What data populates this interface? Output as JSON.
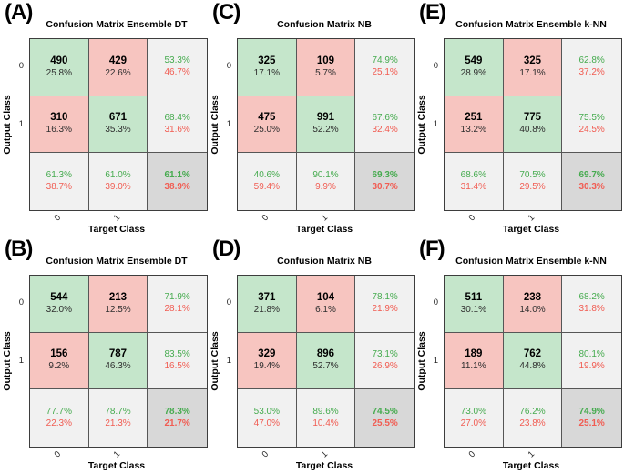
{
  "colors": {
    "correct_cell_bg": "#c5e6cb",
    "incorrect_cell_bg": "#f7c5c0",
    "summary_cell_bg": "#f1f1f1",
    "overall_cell_bg": "#d8d8d8",
    "positive_text": "#46ab4f",
    "negative_text": "#f15c52"
  },
  "chart_data": [
    {
      "type": "heatmap",
      "panel_label": "(A)",
      "title": "Confusion Matrix Ensemble DT",
      "xlabel": "Target Class",
      "ylabel": "Output Class",
      "classes": [
        "0",
        "1"
      ],
      "matrix": [
        [
          490,
          429
        ],
        [
          310,
          671
        ]
      ],
      "matrix_pct": [
        [
          "25.8%",
          "22.6%"
        ],
        [
          "16.3%",
          "35.3%"
        ]
      ],
      "row_summary": [
        {
          "green": "53.3%",
          "red": "46.7%"
        },
        {
          "green": "68.4%",
          "red": "31.6%"
        }
      ],
      "col_summary": [
        {
          "green": "61.3%",
          "red": "38.7%"
        },
        {
          "green": "61.0%",
          "red": "39.0%"
        }
      ],
      "overall": {
        "green": "61.1%",
        "red": "38.9%"
      }
    },
    {
      "type": "heatmap",
      "panel_label": "(C)",
      "title": "Confusion Matrix NB",
      "xlabel": "Target Class",
      "ylabel": "Output Class",
      "classes": [
        "0",
        "1"
      ],
      "matrix": [
        [
          325,
          109
        ],
        [
          475,
          991
        ]
      ],
      "matrix_pct": [
        [
          "17.1%",
          "5.7%"
        ],
        [
          "25.0%",
          "52.2%"
        ]
      ],
      "row_summary": [
        {
          "green": "74.9%",
          "red": "25.1%"
        },
        {
          "green": "67.6%",
          "red": "32.4%"
        }
      ],
      "col_summary": [
        {
          "green": "40.6%",
          "red": "59.4%"
        },
        {
          "green": "90.1%",
          "red": "9.9%"
        }
      ],
      "overall": {
        "green": "69.3%",
        "red": "30.7%"
      }
    },
    {
      "type": "heatmap",
      "panel_label": "(E)",
      "title": "Confusion Matrix Ensemble k-NN",
      "xlabel": "Target Class",
      "ylabel": "Output Class",
      "classes": [
        "0",
        "1"
      ],
      "matrix": [
        [
          549,
          325
        ],
        [
          251,
          775
        ]
      ],
      "matrix_pct": [
        [
          "28.9%",
          "17.1%"
        ],
        [
          "13.2%",
          "40.8%"
        ]
      ],
      "row_summary": [
        {
          "green": "62.8%",
          "red": "37.2%"
        },
        {
          "green": "75.5%",
          "red": "24.5%"
        }
      ],
      "col_summary": [
        {
          "green": "68.6%",
          "red": "31.4%"
        },
        {
          "green": "70.5%",
          "red": "29.5%"
        }
      ],
      "overall": {
        "green": "69.7%",
        "red": "30.3%"
      }
    },
    {
      "type": "heatmap",
      "panel_label": "(B)",
      "title": "Confusion Matrix Ensemble DT",
      "xlabel": "Target Class",
      "ylabel": "Output Class",
      "classes": [
        "0",
        "1"
      ],
      "matrix": [
        [
          544,
          213
        ],
        [
          156,
          787
        ]
      ],
      "matrix_pct": [
        [
          "32.0%",
          "12.5%"
        ],
        [
          "9.2%",
          "46.3%"
        ]
      ],
      "row_summary": [
        {
          "green": "71.9%",
          "red": "28.1%"
        },
        {
          "green": "83.5%",
          "red": "16.5%"
        }
      ],
      "col_summary": [
        {
          "green": "77.7%",
          "red": "22.3%"
        },
        {
          "green": "78.7%",
          "red": "21.3%"
        }
      ],
      "overall": {
        "green": "78.3%",
        "red": "21.7%"
      }
    },
    {
      "type": "heatmap",
      "panel_label": "(D)",
      "title": "Confusion Matrix NB",
      "xlabel": "Target Class",
      "ylabel": "Output Class",
      "classes": [
        "0",
        "1"
      ],
      "matrix": [
        [
          371,
          104
        ],
        [
          329,
          896
        ]
      ],
      "matrix_pct": [
        [
          "21.8%",
          "6.1%"
        ],
        [
          "19.4%",
          "52.7%"
        ]
      ],
      "row_summary": [
        {
          "green": "78.1%",
          "red": "21.9%"
        },
        {
          "green": "73.1%",
          "red": "26.9%"
        }
      ],
      "col_summary": [
        {
          "green": "53.0%",
          "red": "47.0%"
        },
        {
          "green": "89.6%",
          "red": "10.4%"
        }
      ],
      "overall": {
        "green": "74.5%",
        "red": "25.5%"
      }
    },
    {
      "type": "heatmap",
      "panel_label": "(F)",
      "title": "Confusion Matrix Ensemble k-NN",
      "xlabel": "Target Class",
      "ylabel": "Output Class",
      "classes": [
        "0",
        "1"
      ],
      "matrix": [
        [
          511,
          238
        ],
        [
          189,
          762
        ]
      ],
      "matrix_pct": [
        [
          "30.1%",
          "14.0%"
        ],
        [
          "11.1%",
          "44.8%"
        ]
      ],
      "row_summary": [
        {
          "green": "68.2%",
          "red": "31.8%"
        },
        {
          "green": "80.1%",
          "red": "19.9%"
        }
      ],
      "col_summary": [
        {
          "green": "73.0%",
          "red": "27.0%"
        },
        {
          "green": "76.2%",
          "red": "23.8%"
        }
      ],
      "overall": {
        "green": "74.9%",
        "red": "25.1%"
      }
    }
  ]
}
